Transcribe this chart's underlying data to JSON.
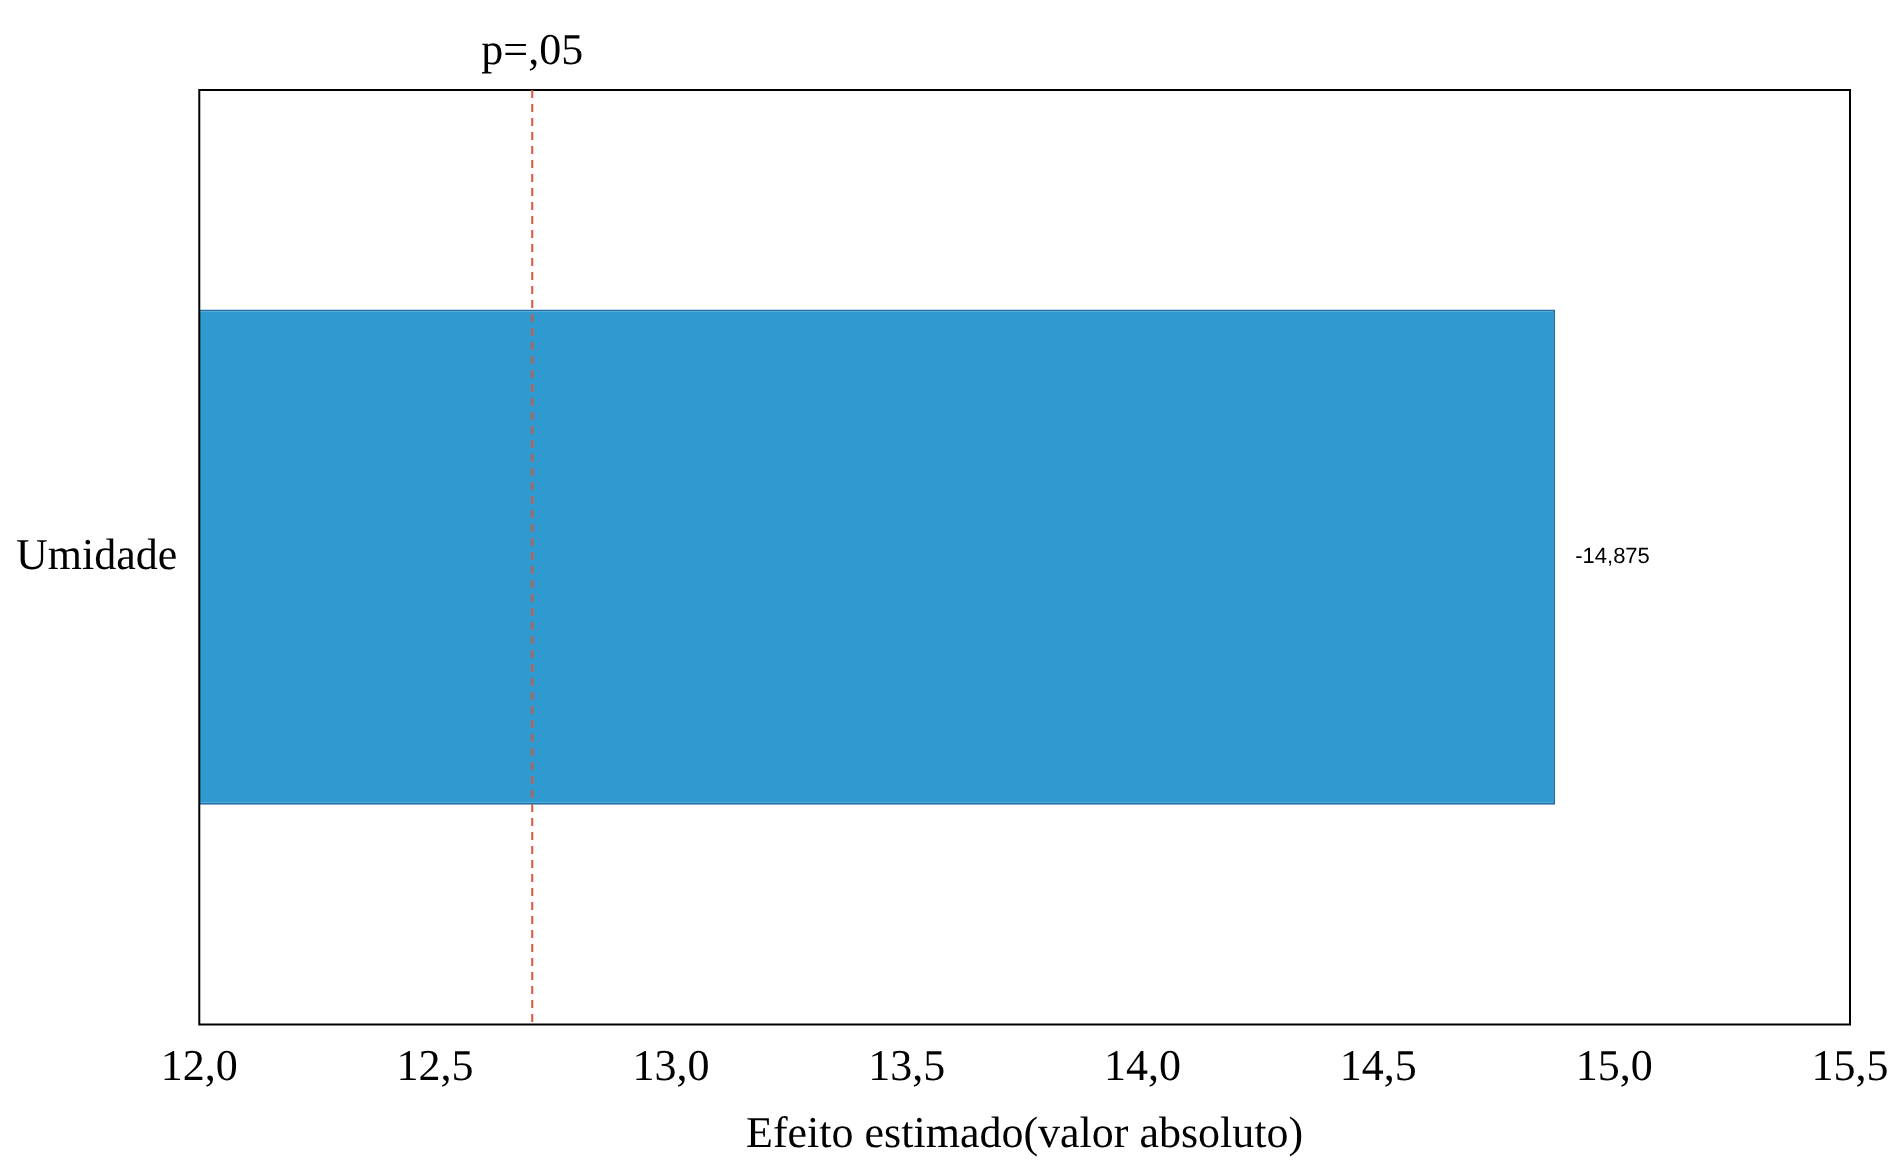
{
  "chart_data": {
    "type": "bar",
    "orientation": "horizontal",
    "categories": [
      "Umidade"
    ],
    "values": [
      14.875
    ],
    "annotations": [
      "-14,875"
    ],
    "color": "#2e9ad0",
    "xlabel": "Efeito estimado(valor absoluto)",
    "xlim": [
      12,
      15.5
    ],
    "xticks": [
      {
        "value": 12,
        "label": "12,0"
      },
      {
        "value": 12.5,
        "label": "12,5"
      },
      {
        "value": 13,
        "label": "13,0"
      },
      {
        "value": 13.5,
        "label": "13,5"
      },
      {
        "value": 14,
        "label": "14,0"
      },
      {
        "value": 14.5,
        "label": "14,5"
      },
      {
        "value": 15,
        "label": "15,0"
      },
      {
        "value": 15.5,
        "label": "15,5"
      }
    ],
    "ref_lines": [
      {
        "axis": "x",
        "value": 12.706,
        "label": "p=,05",
        "color": "#d9573a",
        "line_style": "dashed"
      }
    ],
    "grid": false,
    "legend": false
  }
}
